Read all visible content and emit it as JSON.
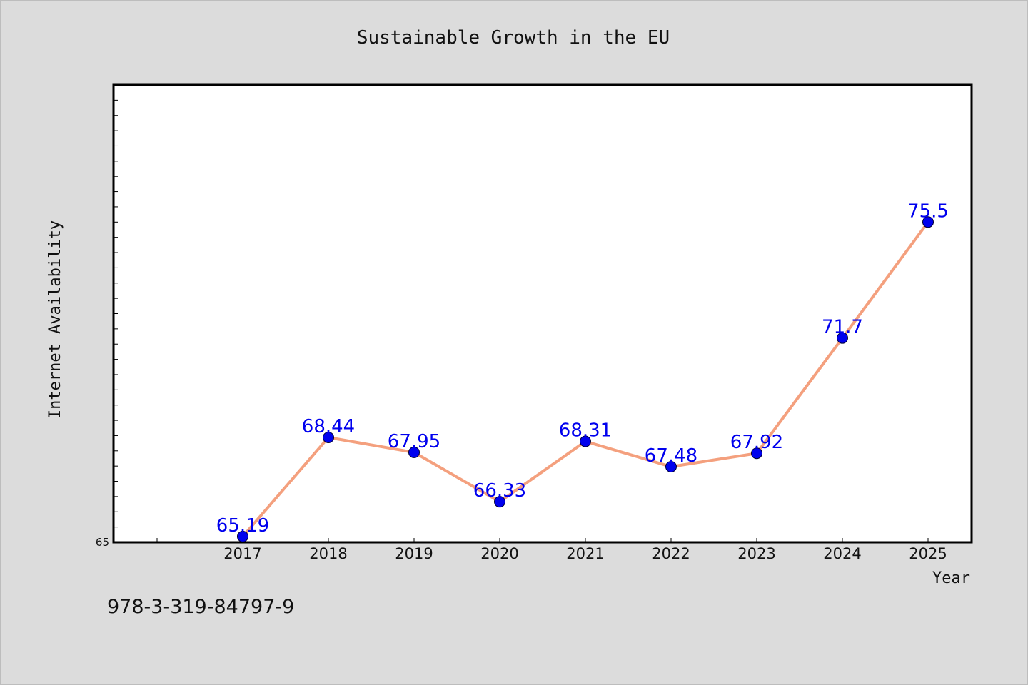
{
  "chart_data": {
    "type": "line",
    "title": "Sustainable Growth in the EU",
    "xlabel": "Year",
    "ylabel": "Internet Availability",
    "categories": [
      "2017",
      "2018",
      "2019",
      "2020",
      "2021",
      "2022",
      "2023",
      "2024",
      "2025"
    ],
    "series": [
      {
        "values": [
          65.19,
          68.44,
          67.95,
          66.33,
          68.31,
          67.48,
          67.92,
          71.7,
          75.5
        ],
        "data_labels": [
          "65.19",
          "68.44",
          "67.95",
          "66.33",
          "68.31",
          "67.48",
          "67.92",
          "71.7",
          "75.5"
        ],
        "line_color": "#f4a07e",
        "marker_color": "#0000ee"
      }
    ],
    "ylim": [
      65,
      80
    ],
    "yticks_labeled": [
      "65"
    ],
    "legend": "none",
    "grid": false,
    "label_color": "#0000ee"
  },
  "footer": {
    "isbn": "978-3-319-84797-9"
  },
  "colors": {
    "background": "#dcdcdc",
    "plot_background": "#ffffff",
    "axis": "#000000"
  }
}
